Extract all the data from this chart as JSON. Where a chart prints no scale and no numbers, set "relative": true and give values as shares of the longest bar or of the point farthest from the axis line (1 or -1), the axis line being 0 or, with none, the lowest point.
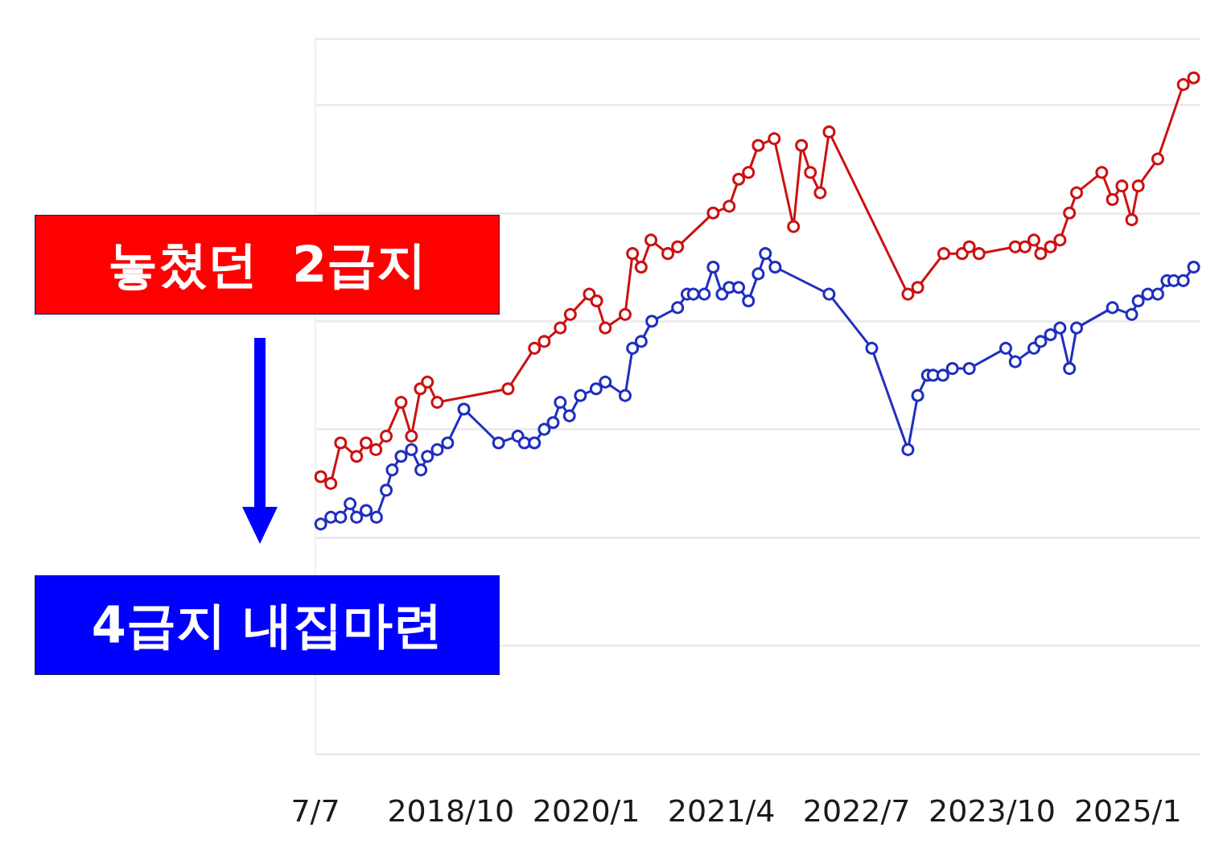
{
  "chart_data": {
    "type": "line",
    "relative": true,
    "grid": "y",
    "marker": "circle",
    "line_style": "solid",
    "annotations": [
      "놓쳤던  2급지",
      "4급지 내집마련"
    ],
    "xlim": [
      "2017-07-01",
      "2025-09-03"
    ],
    "xticks": [
      {
        "value": "2017-07-01",
        "label": "7/7"
      },
      {
        "value": "2018-10-01",
        "label": "2018/10"
      },
      {
        "value": "2020-01-01",
        "label": "2020/1"
      },
      {
        "value": "2021-04-01",
        "label": "2021/4"
      },
      {
        "value": "2022-07-01",
        "label": "2022/7"
      },
      {
        "value": "2023-10-01",
        "label": "2023/10"
      },
      {
        "value": "2025-01-01",
        "label": "2025/1"
      }
    ],
    "series": [
      {
        "color": "#cc1111",
        "x": [
          "2017-07-19",
          "2017-08-22",
          "2017-09-24",
          "2017-11-17",
          "2017-12-19",
          "2018-01-21",
          "2018-02-25",
          "2018-04-16",
          "2018-05-21",
          "2018-06-20",
          "2018-07-14",
          "2018-08-16",
          "2019-04-12",
          "2019-07-10",
          "2019-08-12",
          "2019-10-05",
          "2019-11-08",
          "2020-01-11",
          "2020-02-05",
          "2020-03-05",
          "2020-05-11",
          "2020-06-05",
          "2020-07-04",
          "2020-08-06",
          "2020-10-02",
          "2020-11-04",
          "2021-03-04",
          "2021-04-27",
          "2021-05-29",
          "2021-07-01",
          "2021-08-03",
          "2021-09-26",
          "2021-11-30",
          "2021-12-27",
          "2022-01-26",
          "2022-02-28",
          "2022-03-30",
          "2022-12-21",
          "2023-01-23",
          "2023-04-21",
          "2023-06-22",
          "2023-07-16",
          "2023-08-18",
          "2023-12-18",
          "2024-01-20",
          "2024-02-19",
          "2024-03-13",
          "2024-04-15",
          "2024-05-17",
          "2024-06-18",
          "2024-07-12",
          "2024-10-05",
          "2024-11-10",
          "2024-12-12",
          "2025-01-14",
          "2025-02-05",
          "2025-04-12",
          "2025-07-07",
          "2025-08-11"
        ],
        "values": [
          0.41,
          0.4,
          0.46,
          0.44,
          0.46,
          0.45,
          0.47,
          0.52,
          0.47,
          0.54,
          0.55,
          0.52,
          0.54,
          0.6,
          0.61,
          0.63,
          0.65,
          0.68,
          0.67,
          0.63,
          0.65,
          0.74,
          0.72,
          0.76,
          0.74,
          0.75,
          0.8,
          0.81,
          0.85,
          0.86,
          0.9,
          0.91,
          0.78,
          0.9,
          0.86,
          0.83,
          0.92,
          0.68,
          0.69,
          0.74,
          0.74,
          0.75,
          0.74,
          0.75,
          0.75,
          0.76,
          0.74,
          0.75,
          0.76,
          0.8,
          0.83,
          0.86,
          0.82,
          0.84,
          0.79,
          0.84,
          0.88,
          0.99,
          1
        ]
      },
      {
        "color": "#1f2fbf",
        "x": [
          "2017-07-19",
          "2017-08-22",
          "2017-09-24",
          "2017-10-26",
          "2017-11-17",
          "2017-12-19",
          "2018-01-23",
          "2018-02-25",
          "2018-03-17",
          "2018-04-16",
          "2018-05-21",
          "2018-06-22",
          "2018-07-14",
          "2018-08-16",
          "2018-09-20",
          "2018-11-14",
          "2019-03-11",
          "2019-05-15",
          "2019-06-06",
          "2019-07-10",
          "2019-08-12",
          "2019-09-11",
          "2019-10-05",
          "2019-11-05",
          "2019-12-12",
          "2020-02-03",
          "2020-03-05",
          "2020-05-11",
          "2020-06-05",
          "2020-07-04",
          "2020-08-09",
          "2020-11-04",
          "2020-12-06",
          "2020-12-27",
          "2021-02-02",
          "2021-03-04",
          "2021-04-03",
          "2021-04-27",
          "2021-05-29",
          "2021-07-01",
          "2021-08-03",
          "2021-08-27",
          "2021-09-29",
          "2022-03-30",
          "2022-08-21",
          "2022-12-21",
          "2023-01-23",
          "2023-02-25",
          "2023-03-16",
          "2023-04-18",
          "2023-05-20",
          "2023-07-16",
          "2023-11-16",
          "2023-12-18",
          "2024-02-19",
          "2024-03-13",
          "2024-04-15",
          "2024-05-17",
          "2024-06-18",
          "2024-07-12",
          "2024-11-10",
          "2025-01-14",
          "2025-02-05",
          "2025-03-09",
          "2025-04-12",
          "2025-05-13",
          "2025-06-05",
          "2025-07-07",
          "2025-08-11"
        ],
        "values": [
          0.34,
          0.35,
          0.35,
          0.37,
          0.35,
          0.36,
          0.35,
          0.39,
          0.42,
          0.44,
          0.45,
          0.42,
          0.44,
          0.45,
          0.46,
          0.51,
          0.46,
          0.47,
          0.46,
          0.46,
          0.48,
          0.49,
          0.52,
          0.5,
          0.53,
          0.54,
          0.55,
          0.53,
          0.6,
          0.61,
          0.64,
          0.66,
          0.68,
          0.68,
          0.68,
          0.72,
          0.68,
          0.69,
          0.69,
          0.67,
          0.71,
          0.74,
          0.72,
          0.68,
          0.6,
          0.45,
          0.53,
          0.56,
          0.56,
          0.56,
          0.57,
          0.57,
          0.6,
          0.58,
          0.6,
          0.61,
          0.62,
          0.63,
          0.57,
          0.63,
          0.66,
          0.65,
          0.67,
          0.68,
          0.68,
          0.7,
          0.7,
          0.7,
          0.72
        ]
      }
    ]
  }
}
